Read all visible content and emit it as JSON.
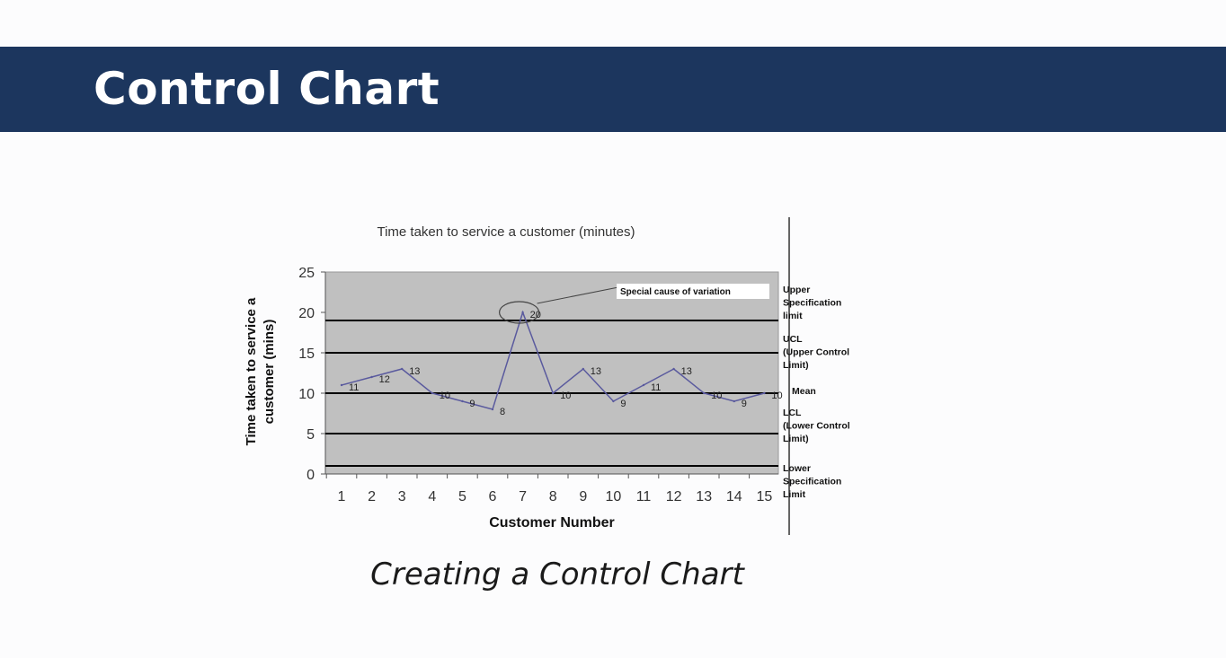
{
  "slide": {
    "title": "Control Chart",
    "caption": "Creating a Control Chart"
  },
  "colors": {
    "header_bg": "#1c365e",
    "plot_bg": "#c0c0c0",
    "series_line": "#5a5a9e",
    "limit_line": "#000000"
  },
  "chart_data": {
    "type": "line",
    "title": "Time taken to service a customer (minutes)",
    "xlabel": "Customer Number",
    "ylabel": "Time taken to service a customer (mins)",
    "ylim": [
      0,
      25
    ],
    "yticks": [
      0,
      5,
      10,
      15,
      20,
      25
    ],
    "categories": [
      "1",
      "2",
      "3",
      "4",
      "5",
      "6",
      "7",
      "8",
      "9",
      "10",
      "11",
      "12",
      "13",
      "14",
      "15"
    ],
    "series": [
      {
        "values": [
          11,
          12,
          13,
          10,
          9,
          8,
          20,
          10,
          13,
          9,
          11,
          13,
          10,
          9,
          10
        ]
      }
    ],
    "grid": false,
    "reference_lines": [
      {
        "value": 19,
        "label": "Upper Specification limit"
      },
      {
        "value": 15,
        "label": "UCL (Upper Control Limit)"
      },
      {
        "value": 10,
        "label": "Mean"
      },
      {
        "value": 5,
        "label": "LCL (Lower Control Limit)"
      },
      {
        "value": 1,
        "label": "Lower Specification Limit"
      }
    ],
    "annotations": [
      {
        "text": "Special cause of variation",
        "category": "7",
        "value": 20
      }
    ]
  }
}
